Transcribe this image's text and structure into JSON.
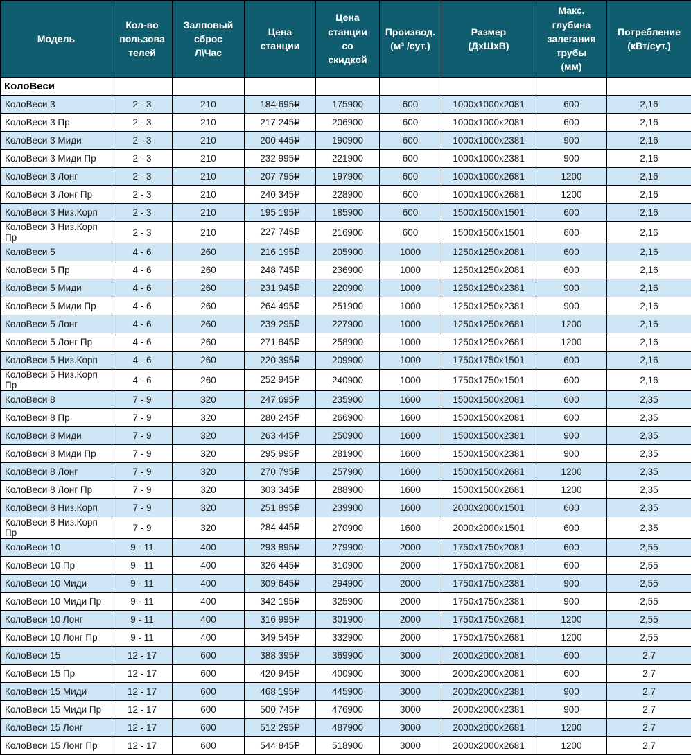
{
  "chart_data": {
    "type": "table",
    "title": "КолоВеси",
    "columns": [
      "Модель",
      "Кол-во пользователей",
      "Залповый сброс Л\\Час",
      "Цена станции",
      "Цена станции со скидкой",
      "Производ. (м³ /сут.)",
      "Размер (ДхШхВ)",
      "Макс. глубина залегания трубы (мм)",
      "Потребление (кВт/сут.)"
    ],
    "rows": [
      [
        "КолоВеси 3",
        "2 - 3",
        "210",
        "184 695₽",
        "175900",
        "600",
        "1000х1000х2081",
        "600",
        "2,16"
      ],
      [
        "КолоВеси 3 Пр",
        "2 - 3",
        "210",
        "217 245₽",
        "206900",
        "600",
        "1000х1000х2081",
        "600",
        "2,16"
      ],
      [
        "КолоВеси 3 Миди",
        "2 - 3",
        "210",
        "200 445₽",
        "190900",
        "600",
        "1000х1000х2381",
        "900",
        "2,16"
      ],
      [
        "КолоВеси 3 Миди Пр",
        "2 - 3",
        "210",
        "232 995₽",
        "221900",
        "600",
        "1000х1000х2381",
        "900",
        "2,16"
      ],
      [
        "КолоВеси 3 Лонг",
        "2 - 3",
        "210",
        "207 795₽",
        "197900",
        "600",
        "1000х1000х2681",
        "1200",
        "2,16"
      ],
      [
        "КолоВеси 3 Лонг Пр",
        "2 - 3",
        "210",
        "240 345₽",
        "228900",
        "600",
        "1000х1000х2681",
        "1200",
        "2,16"
      ],
      [
        "КолоВеси 3 Низ.Корп",
        "2 - 3",
        "210",
        "195 195₽",
        "185900",
        "600",
        "1500х1500х1501",
        "600",
        "2,16"
      ],
      [
        "КолоВеси 3 Низ.Корп Пр",
        "2 - 3",
        "210",
        "227 745₽",
        "216900",
        "600",
        "1500х1500х1501",
        "600",
        "2,16"
      ],
      [
        "КолоВеси 5",
        "4 - 6",
        "260",
        "216 195₽",
        "205900",
        "1000",
        "1250х1250х2081",
        "600",
        "2,16"
      ],
      [
        "КолоВеси 5 Пр",
        "4 - 6",
        "260",
        "248 745₽",
        "236900",
        "1000",
        "1250х1250х2081",
        "600",
        "2,16"
      ],
      [
        "КолоВеси 5 Миди",
        "4 - 6",
        "260",
        "231 945₽",
        "220900",
        "1000",
        "1250х1250х2381",
        "900",
        "2,16"
      ],
      [
        "КолоВеси 5 Миди Пр",
        "4 - 6",
        "260",
        "264 495₽",
        "251900",
        "1000",
        "1250х1250х2381",
        "900",
        "2,16"
      ],
      [
        "КолоВеси 5 Лонг",
        "4 - 6",
        "260",
        "239 295₽",
        "227900",
        "1000",
        "1250х1250х2681",
        "1200",
        "2,16"
      ],
      [
        "КолоВеси 5 Лонг Пр",
        "4 - 6",
        "260",
        "271 845₽",
        "258900",
        "1000",
        "1250х1250х2681",
        "1200",
        "2,16"
      ],
      [
        "КолоВеси 5 Низ.Корп",
        "4 - 6",
        "260",
        "220 395₽",
        "209900",
        "1000",
        "1750х1750х1501",
        "600",
        "2,16"
      ],
      [
        "КолоВеси 5 Низ.Корп Пр",
        "4 - 6",
        "260",
        "252 945₽",
        "240900",
        "1000",
        "1750х1750х1501",
        "600",
        "2,16"
      ],
      [
        "КолоВеси 8",
        "7 - 9",
        "320",
        "247 695₽",
        "235900",
        "1600",
        "1500х1500х2081",
        "600",
        "2,35"
      ],
      [
        "КолоВеси 8 Пр",
        "7 - 9",
        "320",
        "280 245₽",
        "266900",
        "1600",
        "1500х1500х2081",
        "600",
        "2,35"
      ],
      [
        "КолоВеси 8 Миди",
        "7 - 9",
        "320",
        "263 445₽",
        "250900",
        "1600",
        "1500х1500х2381",
        "900",
        "2,35"
      ],
      [
        "КолоВеси 8 Миди Пр",
        "7 - 9",
        "320",
        "295 995₽",
        "281900",
        "1600",
        "1500х1500х2381",
        "900",
        "2,35"
      ],
      [
        "КолоВеси 8 Лонг",
        "7 - 9",
        "320",
        "270 795₽",
        "257900",
        "1600",
        "1500х1500х2681",
        "1200",
        "2,35"
      ],
      [
        "КолоВеси 8 Лонг Пр",
        "7 - 9",
        "320",
        "303 345₽",
        "288900",
        "1600",
        "1500х1500х2681",
        "1200",
        "2,35"
      ],
      [
        "КолоВеси 8 Низ.Корп",
        "7 - 9",
        "320",
        "251 895₽",
        "239900",
        "1600",
        "2000х2000х1501",
        "600",
        "2,35"
      ],
      [
        "КолоВеси 8 Низ.Корп Пр",
        "7 - 9",
        "320",
        "284 445₽",
        "270900",
        "1600",
        "2000х2000х1501",
        "600",
        "2,35"
      ],
      [
        "КолоВеси 10",
        "9 - 11",
        "400",
        "293 895₽",
        "279900",
        "2000",
        "1750х1750х2081",
        "600",
        "2,55"
      ],
      [
        "КолоВеси 10 Пр",
        "9 - 11",
        "400",
        "326 445₽",
        "310900",
        "2000",
        "1750х1750х2081",
        "600",
        "2,55"
      ],
      [
        "КолоВеси 10 Миди",
        "9 - 11",
        "400",
        "309 645₽",
        "294900",
        "2000",
        "1750х1750х2381",
        "900",
        "2,55"
      ],
      [
        "КолоВеси 10 Миди Пр",
        "9 - 11",
        "400",
        "342 195₽",
        "325900",
        "2000",
        "1750х1750х2381",
        "900",
        "2,55"
      ],
      [
        "КолоВеси 10 Лонг",
        "9 - 11",
        "400",
        "316 995₽",
        "301900",
        "2000",
        "1750х1750х2681",
        "1200",
        "2,55"
      ],
      [
        "КолоВеси 10 Лонг Пр",
        "9 - 11",
        "400",
        "349 545₽",
        "332900",
        "2000",
        "1750х1750х2681",
        "1200",
        "2,55"
      ],
      [
        "КолоВеси 15",
        "12 - 17",
        "600",
        "388 395₽",
        "369900",
        "3000",
        "2000х2000х2081",
        "600",
        "2,7"
      ],
      [
        "КолоВеси 15 Пр",
        "12 - 17",
        "600",
        "420 945₽",
        "400900",
        "3000",
        "2000х2000х2081",
        "600",
        "2,7"
      ],
      [
        "КолоВеси 15 Миди",
        "12 - 17",
        "600",
        "468 195₽",
        "445900",
        "3000",
        "2000х2000х2381",
        "900",
        "2,7"
      ],
      [
        "КолоВеси 15 Миди Пр",
        "12 - 17",
        "600",
        "500 745₽",
        "476900",
        "3000",
        "2000х2000х2381",
        "900",
        "2,7"
      ],
      [
        "КолоВеси 15 Лонг",
        "12 - 17",
        "600",
        "512 295₽",
        "487900",
        "3000",
        "2000х2000х2681",
        "1200",
        "2,7"
      ],
      [
        "КолоВеси 15 Лонг Пр",
        "12 - 17",
        "600",
        "544 845₽",
        "518900",
        "3000",
        "2000х2000х2681",
        "1200",
        "2,7"
      ]
    ]
  },
  "table": {
    "section_title": "КолоВеси",
    "header_labels": [
      "Модель",
      "Кол-во\nпользова\nтелей",
      "Залповый\nсброс\nЛ\\Час",
      "Цена\nстанции",
      "Цена\nстанции\nсо\nскидкой",
      "Производ.\n(м³ /сут.)",
      "Размер\n(ДхШхВ)",
      "Макс.\nглубина\nзалегания\nтрубы\n(мм)",
      "Потребление\n(кВт/сут.)"
    ]
  },
  "colors": {
    "header_bg": "#0f5d6e",
    "header_text": "#ffffff",
    "row_alt_bg": "#cfe6f6",
    "row_bg": "#ffffff",
    "border": "#000000",
    "text": "#1a1a1a"
  }
}
